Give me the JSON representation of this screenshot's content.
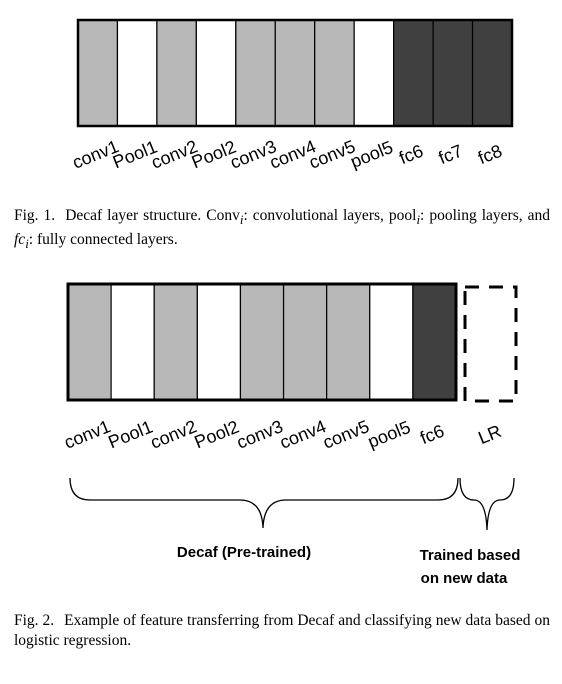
{
  "figure1": {
    "layers": [
      {
        "label": "conv1",
        "kind": "conv"
      },
      {
        "label": "Pool1",
        "kind": "pool"
      },
      {
        "label": "conv2",
        "kind": "conv"
      },
      {
        "label": "Pool2",
        "kind": "pool"
      },
      {
        "label": "conv3",
        "kind": "conv"
      },
      {
        "label": "conv4",
        "kind": "conv"
      },
      {
        "label": "conv5",
        "kind": "conv"
      },
      {
        "label": "pool5",
        "kind": "pool"
      },
      {
        "label": "fc6",
        "kind": "fc"
      },
      {
        "label": "fc7",
        "kind": "fc"
      },
      {
        "label": "fc8",
        "kind": "fc"
      }
    ],
    "caption": {
      "prefix": "Fig. 1.",
      "t1": "Decaf layer structure. Conv",
      "sub1": "i",
      "t2": ": convolutional layers, pool",
      "sub2": "i",
      "t3": ": pooling layers, and ",
      "fc": "fc",
      "sub3": "i",
      "t4": ": fully connected layers."
    }
  },
  "figure2": {
    "layers": [
      {
        "label": "conv1",
        "kind": "conv"
      },
      {
        "label": "Pool1",
        "kind": "pool"
      },
      {
        "label": "conv2",
        "kind": "conv"
      },
      {
        "label": "Pool2",
        "kind": "pool"
      },
      {
        "label": "conv3",
        "kind": "conv"
      },
      {
        "label": "conv4",
        "kind": "conv"
      },
      {
        "label": "conv5",
        "kind": "conv"
      },
      {
        "label": "pool5",
        "kind": "pool"
      },
      {
        "label": "fc6",
        "kind": "fc"
      }
    ],
    "extra_layer": {
      "label": "LR",
      "kind": "dashed"
    },
    "brace_labels": {
      "pretrained": "Decaf (Pre-trained)",
      "trained_line1": "Trained based",
      "trained_line2": "on new data"
    },
    "caption": {
      "prefix": "Fig. 2.",
      "text": "Example of feature transferring from Decaf and classifying new data based on logistic regression."
    }
  },
  "colors": {
    "conv": "#b8b8b8",
    "pool": "#ffffff",
    "fc": "#404040",
    "outline": "#000000"
  }
}
